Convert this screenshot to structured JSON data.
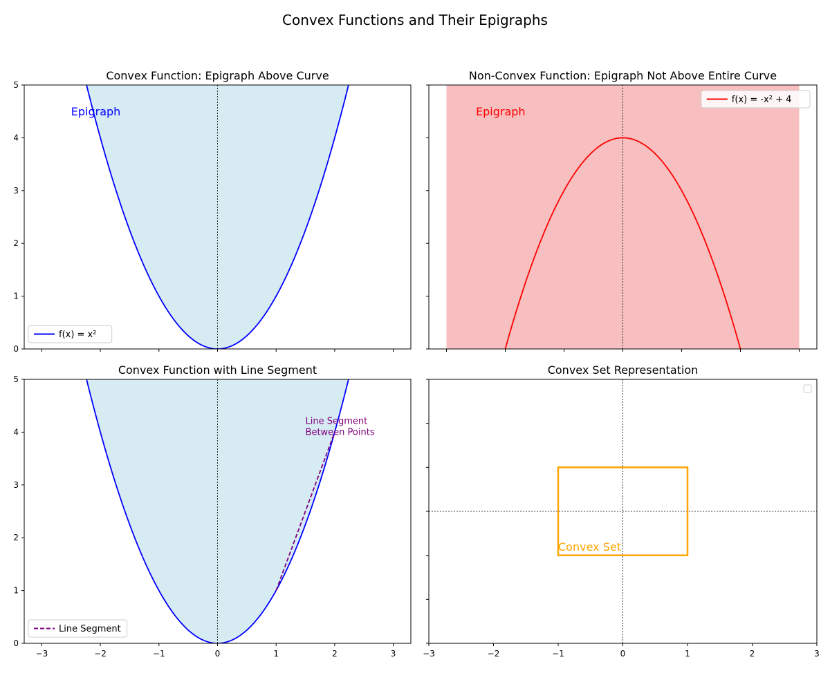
{
  "figure": {
    "suptitle": "Convex Functions and Their Epigraphs"
  },
  "chart_data": [
    {
      "type": "line",
      "title": "Convex Function: Epigraph Above Curve",
      "xlim": [
        -3.3,
        3.3
      ],
      "ylim": [
        0,
        5
      ],
      "xticks": [
        -3,
        -2,
        -1,
        0,
        1,
        2,
        3
      ],
      "yticks": [
        0,
        1,
        2,
        3,
        4,
        5
      ],
      "show_xtick_labels": false,
      "show_ytick_labels": true,
      "function": "x^2",
      "curve_color": "#0000ff",
      "fill": {
        "color": "#add8e6",
        "opacity": 0.5,
        "region": "above curve"
      },
      "vlines": [
        0
      ],
      "hlines": [],
      "legend": {
        "position": "lower left",
        "entries": [
          {
            "label": "f(x) = x²",
            "color": "#0000ff",
            "style": "solid"
          }
        ]
      },
      "annotations": [
        {
          "text": "Epigraph",
          "x": -2.5,
          "y": 4.5,
          "color": "#0000ff"
        }
      ]
    },
    {
      "type": "line",
      "title": "Non-Convex Function: Epigraph Not Above Entire Curve",
      "xlim": [
        -3.3,
        3.3
      ],
      "ylim": [
        0,
        5
      ],
      "xticks": [
        -3,
        -2,
        -1,
        0,
        1,
        2,
        3
      ],
      "yticks": [
        0,
        1,
        2,
        3,
        4,
        5
      ],
      "show_xtick_labels": false,
      "show_ytick_labels": false,
      "function": "-x^2 + 4",
      "curve_color": "#ff0000",
      "fill": {
        "color": "#f08080",
        "opacity": 0.5,
        "region": "band",
        "x_range": [
          -3,
          3
        ],
        "y_range": [
          0,
          5
        ]
      },
      "vlines": [
        0
      ],
      "hlines": [],
      "legend": {
        "position": "upper right",
        "entries": [
          {
            "label": "f(x) = -x² + 4",
            "color": "#ff0000",
            "style": "solid"
          }
        ]
      },
      "annotations": [
        {
          "text": "Epigraph",
          "x": -2.5,
          "y": 4.5,
          "color": "#ff0000"
        }
      ]
    },
    {
      "type": "line",
      "title": "Convex Function with Line Segment",
      "xlim": [
        -3.3,
        3.3
      ],
      "ylim": [
        0,
        5
      ],
      "xticks": [
        -3,
        -2,
        -1,
        0,
        1,
        2,
        3
      ],
      "yticks": [
        0,
        1,
        2,
        3,
        4,
        5
      ],
      "show_xtick_labels": true,
      "show_ytick_labels": true,
      "function": "x^2",
      "curve_color": "#0000ff",
      "fill": {
        "color": "#add8e6",
        "opacity": 0.5,
        "region": "above curve"
      },
      "segment": {
        "x": [
          1,
          2
        ],
        "y": [
          1,
          4
        ],
        "color": "#800080",
        "style": "dashed"
      },
      "vlines": [
        0
      ],
      "hlines": [],
      "legend": {
        "position": "lower left",
        "entries": [
          {
            "label": "Line Segment",
            "color": "#800080",
            "style": "dashed"
          }
        ]
      },
      "annotations": [
        {
          "text": "Line Segment\nBetween Points",
          "x": 1.5,
          "y": 4.0,
          "color": "#800080"
        }
      ]
    },
    {
      "type": "line",
      "title": "Convex Set Representation",
      "xlim": [
        -3,
        3
      ],
      "ylim": [
        -3,
        3
      ],
      "xticks": [
        -3,
        -2,
        -1,
        0,
        1,
        2,
        3
      ],
      "yticks": [
        -3,
        -2,
        -1,
        0,
        1,
        2,
        3
      ],
      "show_xtick_labels": true,
      "show_ytick_labels": false,
      "rectangle": {
        "x": -1,
        "y": -1,
        "width": 2,
        "height": 2,
        "color": "#ffa500"
      },
      "vlines": [
        0
      ],
      "hlines": [
        0
      ],
      "legend": {
        "position": "upper right",
        "entries": []
      },
      "annotations": [
        {
          "text": "Convex Set",
          "x": -1,
          "y": -0.8,
          "color": "#ffa500"
        }
      ]
    }
  ]
}
